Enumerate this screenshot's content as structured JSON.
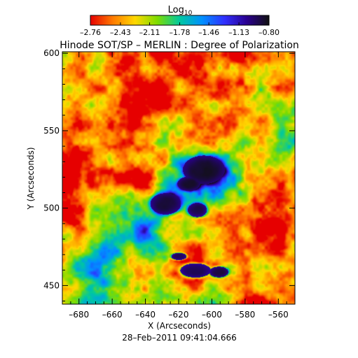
{
  "chart_data": {
    "type": "heatmap",
    "title": "Hinode SOT/SP – MERLIN : Degree of Polarization",
    "xlabel": "X (Arcseconds)",
    "ylabel": "Y (Arcseconds)",
    "timestamp": "28–Feb–2011 09:41:04.666",
    "xlim": [
      -690,
      -550
    ],
    "ylim": [
      438,
      601
    ],
    "xticks": [
      -680,
      -660,
      -640,
      -620,
      -600,
      -580,
      -560
    ],
    "xtick_labels": [
      "–680",
      "–660",
      "–640",
      "–620",
      "–600",
      "–580",
      "–560"
    ],
    "yticks": [
      450,
      500,
      550,
      600
    ],
    "ytick_labels": [
      "450",
      "500",
      "550",
      "600"
    ],
    "colorbar": {
      "label": "Log",
      "label_subscript": "10",
      "range": [
        -2.76,
        -0.8
      ],
      "ticks": [
        -2.76,
        -2.43,
        -2.11,
        -1.78,
        -1.46,
        -1.13,
        -0.8
      ],
      "tick_labels": [
        "–2.76",
        "–2.43",
        "–2.11",
        "–1.78",
        "–1.46",
        "–1.13",
        "–0.80"
      ],
      "colormap": [
        "#e60000",
        "#ff7a00",
        "#ffd800",
        "#7ddc00",
        "#00c8a0",
        "#0090ff",
        "#3030ff",
        "#2a0090",
        "#111111"
      ]
    },
    "features": [
      {
        "kind": "strong-polarization",
        "x": -605,
        "y": 525,
        "rx": 11,
        "ry": 8,
        "value": -0.9
      },
      {
        "kind": "strong-polarization",
        "x": -628,
        "y": 503,
        "rx": 8,
        "ry": 6,
        "value": -0.95
      },
      {
        "kind": "strong-polarization",
        "x": -609,
        "y": 499,
        "rx": 5,
        "ry": 4,
        "value": -0.9
      },
      {
        "kind": "strong-polarization",
        "x": -614,
        "y": 516,
        "rx": 6,
        "ry": 4,
        "value": -0.95
      },
      {
        "kind": "strong-polarization",
        "x": -610,
        "y": 460,
        "rx": 8,
        "ry": 4,
        "value": -0.9
      },
      {
        "kind": "strong-polarization",
        "x": -596,
        "y": 459,
        "rx": 5,
        "ry": 3,
        "value": -1.0
      },
      {
        "kind": "strong-polarization",
        "x": -620,
        "y": 469,
        "rx": 4,
        "ry": 2,
        "value": -1.1
      }
    ]
  }
}
